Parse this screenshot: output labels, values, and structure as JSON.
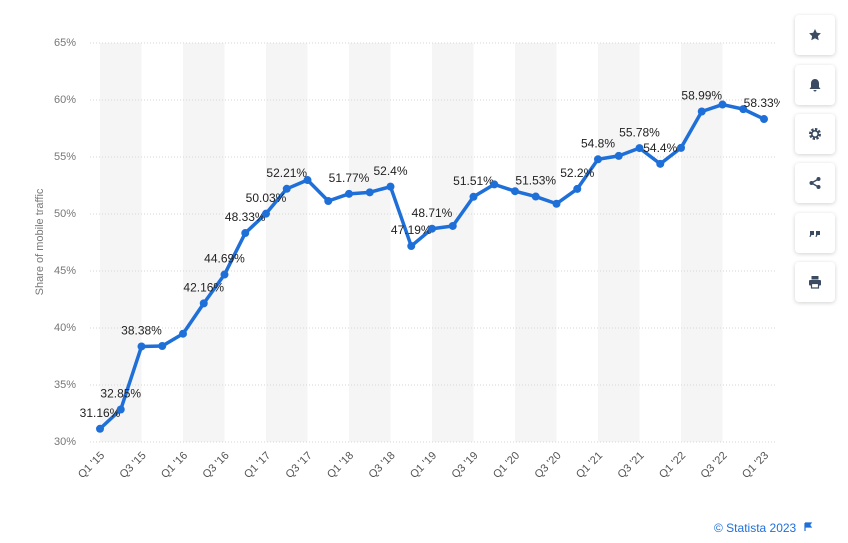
{
  "chart_data": {
    "type": "line",
    "y_label": "Share of mobile traffic",
    "credit": "© Statista 2023",
    "categories": [
      "Q1 '15",
      null,
      "Q3 '15",
      null,
      "Q1 '16",
      null,
      "Q3 '16",
      null,
      "Q1 '17",
      null,
      "Q3 '17",
      null,
      "Q1 '18",
      null,
      "Q3 '18",
      null,
      "Q1 '19",
      null,
      "Q3 '19",
      null,
      "Q1 '20",
      null,
      "Q3 '20",
      null,
      "Q1 '21",
      null,
      "Q3 '21",
      null,
      "Q1 '22",
      null,
      "Q3 '22",
      null,
      "Q1 '23"
    ],
    "series": [
      {
        "color": "#1f6fd8",
        "values": [
          31.16,
          32.85,
          38.38,
          38.42,
          39.5,
          42.16,
          44.69,
          48.33,
          50.03,
          52.21,
          52.98,
          51.14,
          51.77,
          51.9,
          52.4,
          47.19,
          48.71,
          48.95,
          51.51,
          52.6,
          52.0,
          51.53,
          50.9,
          52.2,
          54.8,
          55.1,
          55.78,
          54.4,
          55.8,
          58.99,
          59.6,
          59.2,
          58.33
        ],
        "value_labels": [
          "31.16%",
          "32.85%",
          "38.38%",
          null,
          null,
          "42.16%",
          "44.69%",
          "48.33%",
          "50.03%",
          "52.21%",
          null,
          null,
          "51.77%",
          null,
          "52.4%",
          "47.19%",
          "48.71%",
          null,
          "51.51%",
          null,
          null,
          "51.53%",
          null,
          "52.2%",
          "54.8%",
          null,
          "55.78%",
          "54.4%",
          null,
          "58.99%",
          null,
          null,
          "58.33%"
        ]
      }
    ],
    "ylim": [
      30,
      65
    ],
    "yticks": [
      {
        "value": 30,
        "label": "30%"
      },
      {
        "value": 35,
        "label": "35%"
      },
      {
        "value": 40,
        "label": "40%"
      },
      {
        "value": 45,
        "label": "45%"
      },
      {
        "value": 50,
        "label": "50%"
      },
      {
        "value": 55,
        "label": "55%"
      },
      {
        "value": 60,
        "label": "60%"
      },
      {
        "value": 65,
        "label": "65%"
      }
    ],
    "grid": true
  }
}
